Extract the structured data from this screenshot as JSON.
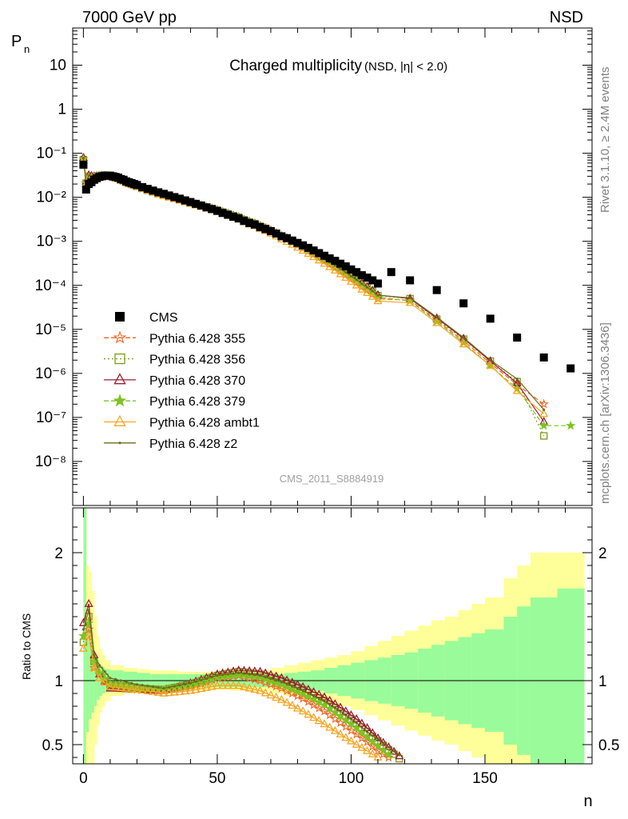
{
  "header": {
    "energy_label": "7000 GeV pp",
    "process_label": "NSD"
  },
  "side_labels": {
    "rivet": "Rivet 3.1.10, ≥ 2.4M events",
    "mcplots": "mcplots.cern.ch [arXiv:1306.3436]"
  },
  "analysis_id": "CMS_2011_S8884919",
  "chart_data": {
    "type": "scatter",
    "title": "Charged multiplicity",
    "title_suffix": "(NSD, |η| < 2.0)",
    "xlabel": "n",
    "ylabel": "P",
    "ylabel_sub": "n",
    "ratio_ylabel": "Ratio to CMS",
    "xlim": [
      -4,
      190
    ],
    "ylim": [
      1e-09,
      70
    ],
    "log_y": true,
    "ratio_ylim": [
      0.35,
      2.35
    ],
    "x_ticks": [
      0,
      50,
      100,
      150
    ],
    "y_tick_labels": [
      "10",
      "1",
      "10⁻¹",
      "10⁻²",
      "10⁻³",
      "10⁻⁴",
      "10⁻⁵",
      "10⁻⁶",
      "10⁻⁷",
      "10⁻⁸"
    ],
    "ratio_y_ticks": [
      0.5,
      1,
      2
    ],
    "legend_position": "bottom-left",
    "cms": {
      "name": "CMS",
      "x": [
        0,
        1,
        2,
        3,
        4,
        5,
        6,
        7,
        8,
        9,
        10,
        11,
        12,
        13,
        14,
        15,
        16,
        17,
        18,
        19,
        20,
        22,
        24,
        26,
        28,
        30,
        32,
        34,
        36,
        38,
        40,
        42,
        44,
        46,
        48,
        50,
        52,
        54,
        56,
        58,
        60,
        62,
        64,
        66,
        68,
        70,
        72,
        74,
        76,
        78,
        80,
        82,
        84,
        86,
        88,
        90,
        92,
        94,
        96,
        98,
        100,
        102,
        104,
        106,
        108,
        110,
        115,
        122,
        132,
        142,
        152,
        162,
        172,
        182
      ],
      "y": [
        0.055,
        0.015,
        0.02,
        0.022,
        0.025,
        0.027,
        0.029,
        0.03,
        0.031,
        0.031,
        0.031,
        0.03,
        0.029,
        0.028,
        0.026,
        0.025,
        0.023,
        0.022,
        0.021,
        0.02,
        0.019,
        0.017,
        0.0155,
        0.0142,
        0.013,
        0.012,
        0.011,
        0.0101,
        0.0093,
        0.0085,
        0.0078,
        0.0071,
        0.0065,
        0.0059,
        0.0054,
        0.0049,
        0.0044,
        0.004,
        0.0036,
        0.0033,
        0.0029,
        0.0026,
        0.0024,
        0.0021,
        0.0019,
        0.0017,
        0.0015,
        0.0013,
        0.00118,
        0.00104,
        0.00092,
        0.00081,
        0.00071,
        0.00062,
        0.00054,
        0.00047,
        0.00041,
        0.00036,
        0.00031,
        0.00027,
        0.00023,
        0.0002,
        0.00017,
        0.00015,
        0.00013,
        0.00011,
        0.0002,
        0.00013,
        7.8e-05,
        3.9e-05,
        1.75e-05,
        6.5e-06,
        2.3e-06,
        1.3e-06
      ]
    },
    "series": [
      {
        "name": "Pythia 6.428 355",
        "color": "#f26522",
        "marker": "star-open",
        "dash": "6,3",
        "ratio": [
          [
            0,
            1.35
          ],
          [
            2,
            1.4
          ],
          [
            4,
            1.1
          ],
          [
            6,
            1.05
          ],
          [
            10,
            0.96
          ],
          [
            20,
            0.93
          ],
          [
            30,
            0.92
          ],
          [
            40,
            0.95
          ],
          [
            50,
            1.02
          ],
          [
            58,
            1.04
          ],
          [
            66,
            1.0
          ],
          [
            74,
            0.94
          ],
          [
            82,
            0.86
          ],
          [
            90,
            0.76
          ],
          [
            96,
            0.67
          ],
          [
            102,
            0.58
          ],
          [
            106,
            0.52
          ],
          [
            110,
            0.45
          ],
          [
            114,
            0.4
          ]
        ],
        "tail": [
          [
            122,
            4.6e-05
          ],
          [
            132,
            1.6e-05
          ],
          [
            142,
            5.5e-06
          ],
          [
            152,
            1.7e-06
          ],
          [
            162,
            5.5e-07
          ],
          [
            172,
            2e-07
          ]
        ]
      },
      {
        "name": "Pythia 6.428 356",
        "color": "#7f9a1a",
        "marker": "square-open",
        "dash": "2,3",
        "ratio": [
          [
            0,
            1.3
          ],
          [
            2,
            1.5
          ],
          [
            4,
            1.15
          ],
          [
            6,
            1.08
          ],
          [
            10,
            0.97
          ],
          [
            20,
            0.94
          ],
          [
            30,
            0.93
          ],
          [
            40,
            0.97
          ],
          [
            50,
            1.04
          ],
          [
            58,
            1.07
          ],
          [
            66,
            1.05
          ],
          [
            74,
            1.0
          ],
          [
            82,
            0.93
          ],
          [
            90,
            0.84
          ],
          [
            96,
            0.76
          ],
          [
            102,
            0.67
          ],
          [
            106,
            0.6
          ],
          [
            110,
            0.53
          ],
          [
            114,
            0.46
          ],
          [
            118,
            0.39
          ]
        ],
        "tail": [
          [
            122,
            5e-05
          ],
          [
            132,
            1.7e-05
          ],
          [
            142,
            6e-06
          ],
          [
            152,
            1.9e-06
          ],
          [
            162,
            6.5e-07
          ],
          [
            172,
            3.8e-08
          ]
        ]
      },
      {
        "name": "Pythia 6.428 370",
        "color": "#9b1b30",
        "marker": "triangle-open",
        "dash": "",
        "ratio": [
          [
            0,
            1.45
          ],
          [
            2,
            1.6
          ],
          [
            4,
            1.2
          ],
          [
            6,
            1.05
          ],
          [
            10,
            0.94
          ],
          [
            20,
            0.93
          ],
          [
            30,
            0.92
          ],
          [
            40,
            0.98
          ],
          [
            50,
            1.05
          ],
          [
            58,
            1.08
          ],
          [
            66,
            1.07
          ],
          [
            74,
            1.02
          ],
          [
            82,
            0.95
          ],
          [
            90,
            0.87
          ],
          [
            96,
            0.79
          ],
          [
            102,
            0.7
          ],
          [
            106,
            0.63
          ],
          [
            110,
            0.55
          ],
          [
            114,
            0.48
          ],
          [
            118,
            0.41
          ]
        ],
        "tail": [
          [
            122,
            5e-05
          ],
          [
            132,
            1.8e-05
          ],
          [
            142,
            6.2e-06
          ],
          [
            152,
            1.9e-06
          ],
          [
            162,
            6e-07
          ],
          [
            172,
            8e-08
          ]
        ]
      },
      {
        "name": "Pythia 6.428 379",
        "color": "#7cc421",
        "marker": "star-filled",
        "dash": "6,3",
        "ratio": [
          [
            0,
            1.35
          ],
          [
            2,
            1.45
          ],
          [
            4,
            1.15
          ],
          [
            6,
            1.06
          ],
          [
            10,
            0.97
          ],
          [
            20,
            0.94
          ],
          [
            30,
            0.93
          ],
          [
            40,
            0.97
          ],
          [
            50,
            1.03
          ],
          [
            58,
            1.05
          ],
          [
            66,
            1.03
          ],
          [
            74,
            0.97
          ],
          [
            82,
            0.9
          ],
          [
            90,
            0.81
          ],
          [
            96,
            0.72
          ],
          [
            102,
            0.63
          ],
          [
            106,
            0.56
          ],
          [
            110,
            0.49
          ],
          [
            114,
            0.42
          ]
        ],
        "tail": [
          [
            122,
            4.4e-05
          ],
          [
            132,
            1.5e-05
          ],
          [
            142,
            5e-06
          ],
          [
            152,
            1.5e-06
          ],
          [
            162,
            4.5e-07
          ],
          [
            172,
            6.5e-08
          ],
          [
            182,
            6.5e-08
          ]
        ]
      },
      {
        "name": "Pythia 6.428 ambt1",
        "color": "#f5a623",
        "marker": "triangle-open",
        "dash": "",
        "ratio": [
          [
            0,
            1.25
          ],
          [
            2,
            1.35
          ],
          [
            4,
            1.1
          ],
          [
            6,
            1.02
          ],
          [
            10,
            0.95
          ],
          [
            20,
            0.93
          ],
          [
            30,
            0.9
          ],
          [
            40,
            0.92
          ],
          [
            50,
            0.96
          ],
          [
            58,
            0.96
          ],
          [
            66,
            0.92
          ],
          [
            74,
            0.85
          ],
          [
            82,
            0.76
          ],
          [
            90,
            0.66
          ],
          [
            96,
            0.58
          ],
          [
            102,
            0.5
          ],
          [
            106,
            0.45
          ],
          [
            110,
            0.4
          ]
        ],
        "tail": [
          [
            122,
            4e-05
          ],
          [
            132,
            1.4e-05
          ],
          [
            142,
            4.6e-06
          ],
          [
            152,
            1.5e-06
          ],
          [
            162,
            4e-07
          ],
          [
            172,
            1.2e-07
          ]
        ]
      },
      {
        "name": "Pythia 6.428 z2",
        "color": "#6b6b1f",
        "marker": "dot",
        "dash": "",
        "ratio": [
          [
            0,
            1.4
          ],
          [
            2,
            1.55
          ],
          [
            4,
            1.2
          ],
          [
            6,
            1.12
          ],
          [
            10,
            1.02
          ],
          [
            20,
            0.97
          ],
          [
            30,
            0.94
          ],
          [
            40,
            0.98
          ],
          [
            50,
            1.04
          ],
          [
            58,
            1.06
          ],
          [
            66,
            1.04
          ],
          [
            74,
            0.99
          ],
          [
            82,
            0.92
          ],
          [
            90,
            0.84
          ],
          [
            96,
            0.76
          ],
          [
            102,
            0.67
          ],
          [
            106,
            0.6
          ],
          [
            110,
            0.54
          ],
          [
            114,
            0.48
          ],
          [
            118,
            0.42
          ]
        ],
        "tail": [
          [
            122,
            5.2e-05
          ],
          [
            132,
            1.9e-05
          ],
          [
            142,
            6.5e-06
          ],
          [
            152,
            2e-06
          ],
          [
            162,
            7.5e-07
          ],
          [
            172,
            1.5e-07
          ]
        ]
      }
    ],
    "uncertainty_bands": {
      "inner_color": "#9afb9a",
      "outer_color": "#ffff99",
      "edges": [
        0,
        1,
        2,
        3,
        4,
        5,
        6,
        7,
        8,
        10,
        15,
        20,
        25,
        30,
        35,
        40,
        45,
        50,
        55,
        60,
        65,
        70,
        75,
        80,
        85,
        90,
        95,
        100,
        105,
        110,
        115,
        120,
        125,
        130,
        135,
        140,
        145,
        150,
        157,
        162,
        167,
        177,
        187
      ],
      "inner": [
        1.35,
        0.4,
        0.3,
        0.25,
        0.2,
        0.15,
        0.12,
        0.1,
        0.09,
        0.08,
        0.07,
        0.06,
        0.05,
        0.05,
        0.05,
        0.05,
        0.05,
        0.05,
        0.05,
        0.05,
        0.05,
        0.05,
        0.06,
        0.07,
        0.08,
        0.1,
        0.12,
        0.14,
        0.16,
        0.18,
        0.2,
        0.22,
        0.25,
        0.28,
        0.31,
        0.34,
        0.37,
        0.4,
        0.5,
        0.58,
        0.65,
        0.72
      ],
      "outer": [
        1.5,
        0.9,
        0.85,
        0.7,
        0.5,
        0.35,
        0.25,
        0.2,
        0.16,
        0.12,
        0.1,
        0.09,
        0.08,
        0.08,
        0.07,
        0.07,
        0.07,
        0.07,
        0.08,
        0.08,
        0.08,
        0.1,
        0.12,
        0.14,
        0.16,
        0.18,
        0.2,
        0.23,
        0.27,
        0.31,
        0.35,
        0.39,
        0.43,
        0.47,
        0.5,
        0.55,
        0.6,
        0.65,
        0.8,
        0.9,
        1.0,
        1.0
      ]
    }
  }
}
